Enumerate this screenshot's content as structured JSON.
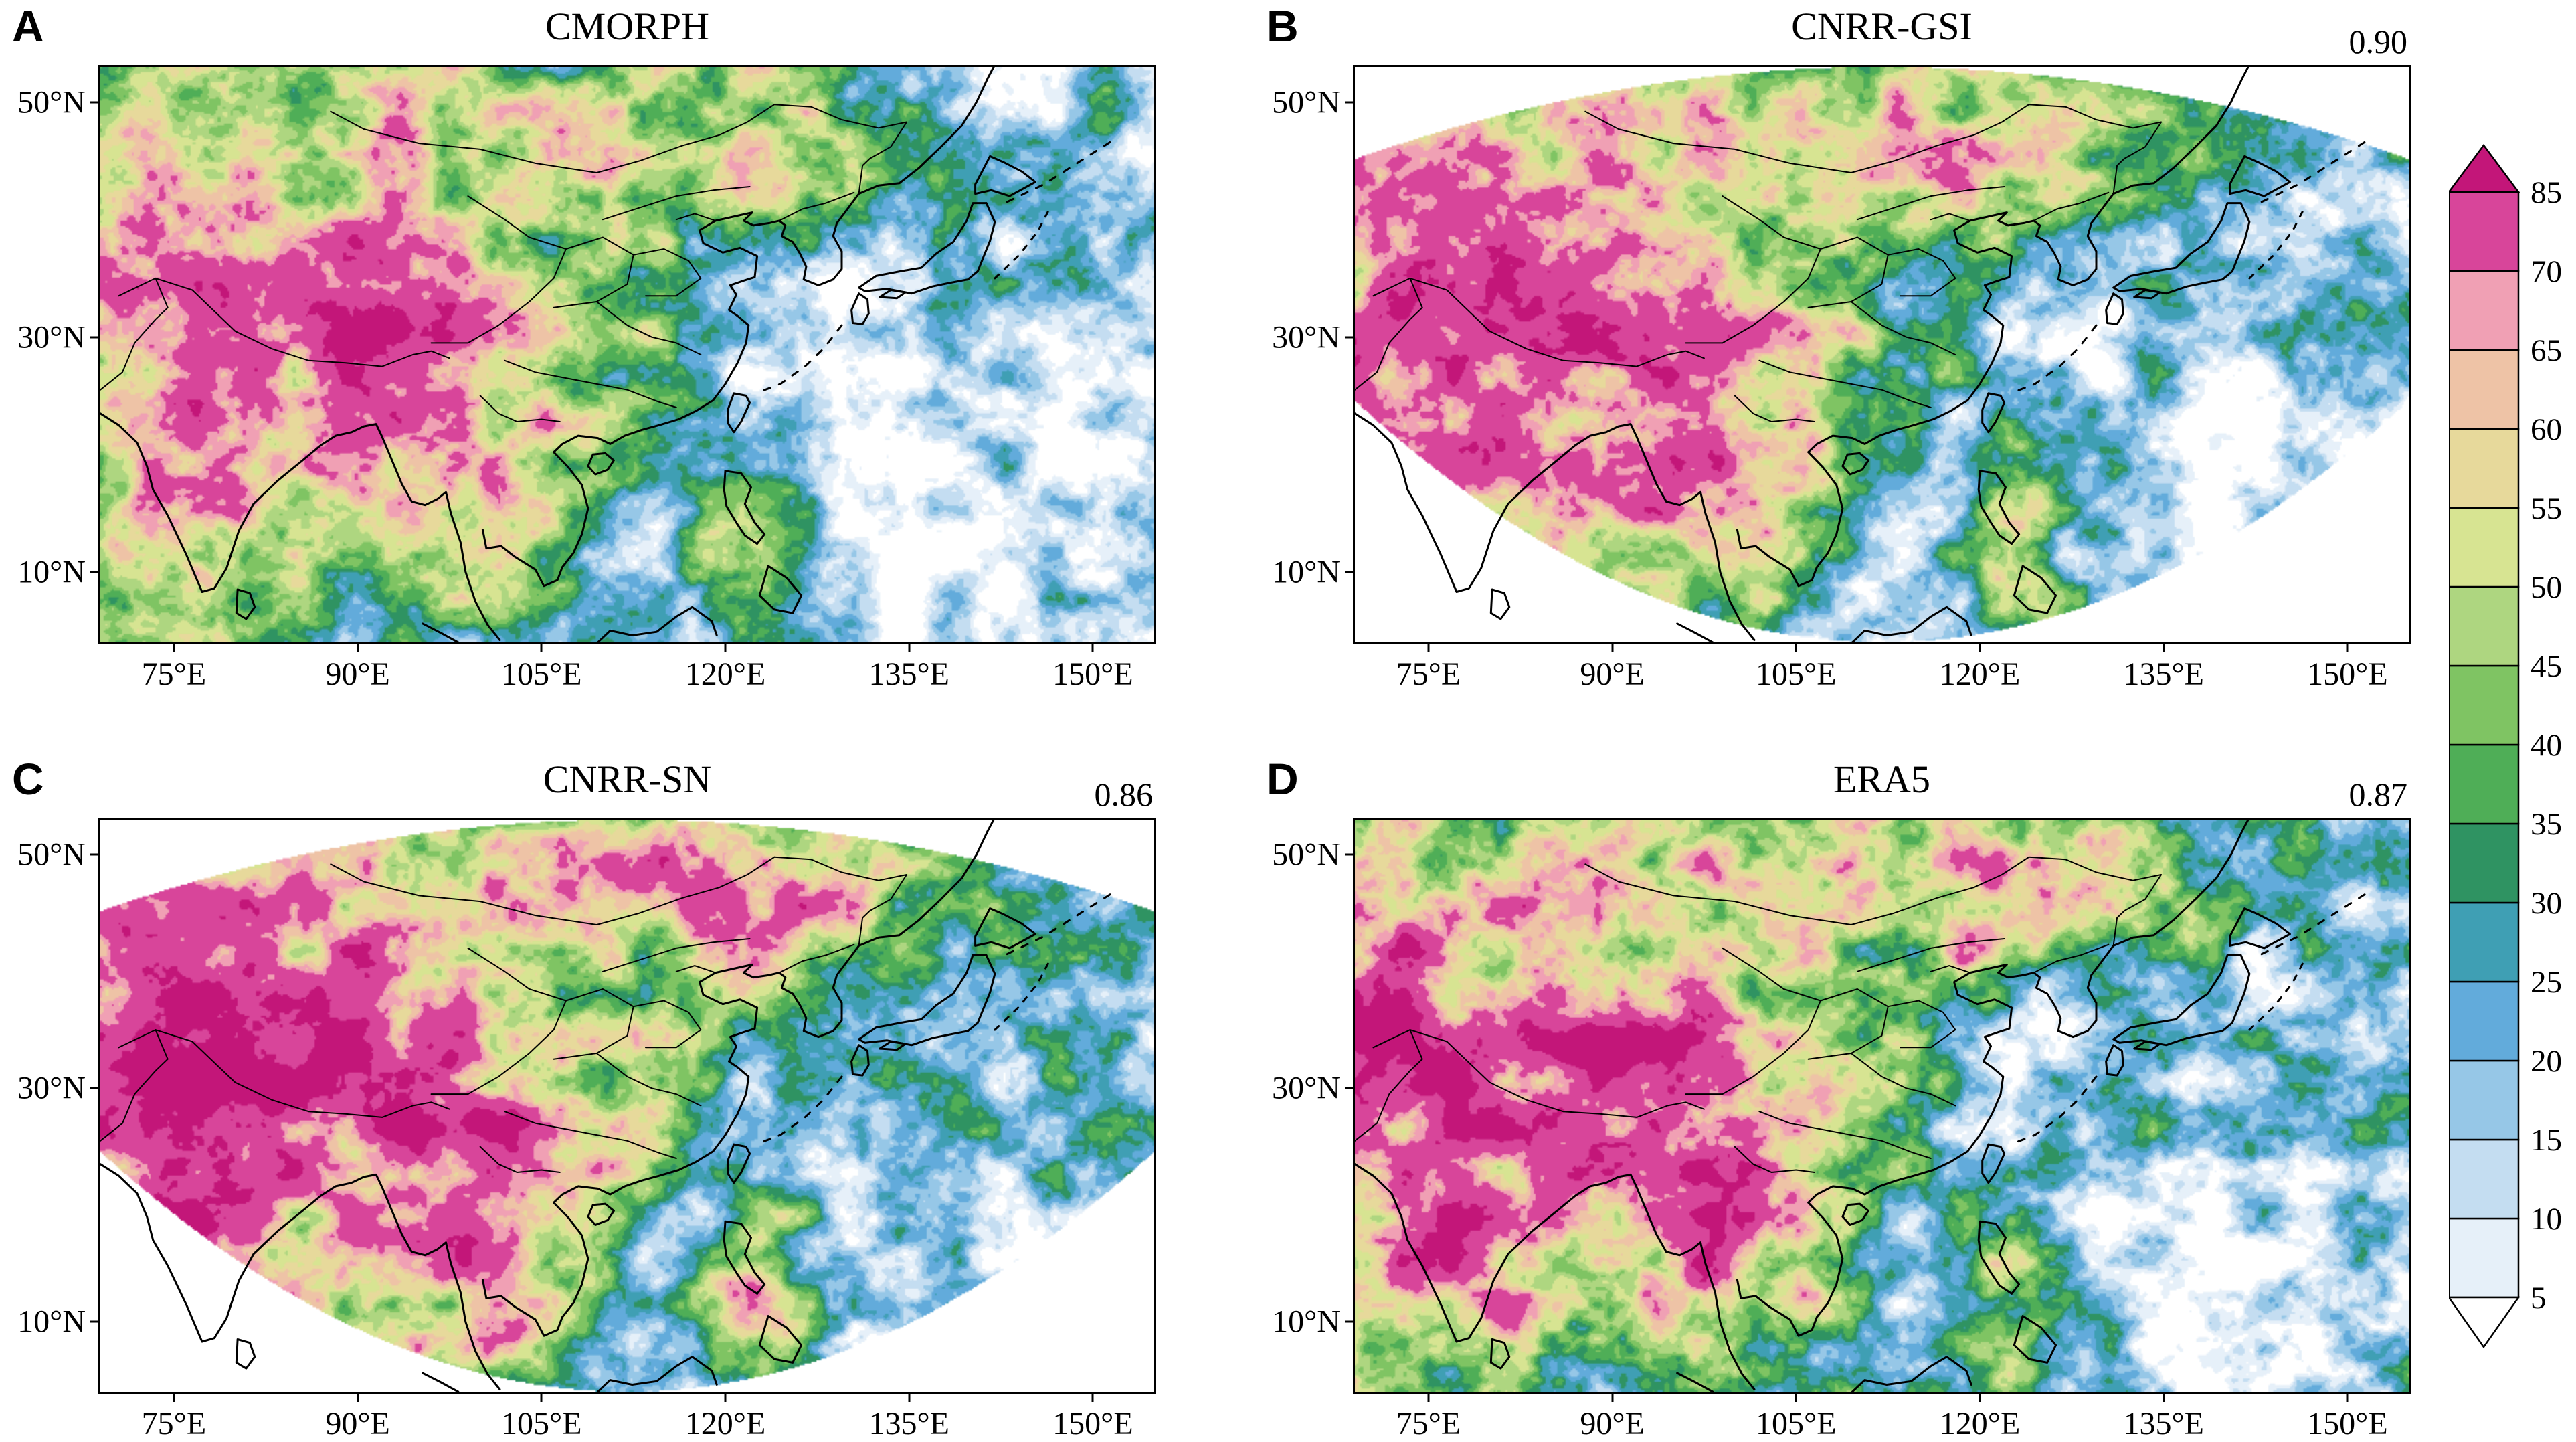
{
  "figure": {
    "unit_label": "%",
    "panels": [
      {
        "label": "A",
        "title": "CMORPH",
        "correlation": null
      },
      {
        "label": "B",
        "title": "CNRR-GSI",
        "correlation": "0.90"
      },
      {
        "label": "C",
        "title": "CNRR-SN",
        "correlation": "0.86"
      },
      {
        "label": "D",
        "title": "ERA5",
        "correlation": "0.87"
      }
    ],
    "x_tick_labels": [
      "75°E",
      "90°E",
      "105°E",
      "120°E",
      "135°E",
      "150°E"
    ],
    "y_tick_labels": [
      "50°N",
      "30°N",
      "10°N"
    ]
  },
  "chart_data": {
    "type": "heatmap",
    "layout": "2x2 geographic map panels sharing one vertical colorbar at right",
    "panels": [
      {
        "id": "A",
        "title": "CMORPH",
        "pattern_correlation": null,
        "domain_mask": "full rectangle"
      },
      {
        "id": "B",
        "title": "CNRR-GSI",
        "pattern_correlation": 0.9,
        "domain_mask": "curved projection fan (white corner wedges)"
      },
      {
        "id": "C",
        "title": "CNRR-SN",
        "pattern_correlation": 0.86,
        "domain_mask": "curved projection fan (white corner wedges)"
      },
      {
        "id": "D",
        "title": "ERA5",
        "pattern_correlation": 0.87,
        "domain_mask": "full rectangle"
      }
    ],
    "x_axis": {
      "tick_values": [
        75,
        90,
        105,
        120,
        135,
        150
      ],
      "tick_labels": [
        "75°E",
        "90°E",
        "105°E",
        "120°E",
        "135°E",
        "150°E"
      ],
      "range_deg_east": [
        69,
        155
      ]
    },
    "y_axis": {
      "tick_values": [
        50,
        30,
        10
      ],
      "tick_labels": [
        "50°N",
        "30°N",
        "10°N"
      ],
      "range_deg_north": [
        4,
        53
      ]
    },
    "colorbar": {
      "unit": "%",
      "orientation": "vertical",
      "levels": [
        5,
        10,
        15,
        20,
        25,
        30,
        35,
        40,
        45,
        50,
        55,
        60,
        65,
        70,
        85
      ],
      "colors": [
        "#ffffff",
        "#e6f0f9",
        "#c4ddf1",
        "#96c7e7",
        "#62abdb",
        "#3f9fb4",
        "#2f9362",
        "#4fae57",
        "#7fc463",
        "#aed680",
        "#d7e492",
        "#e7d99b",
        "#eec3a6",
        "#f0a0b4",
        "#d8459a",
        "#c31679"
      ],
      "arrow_low_color": "#ffffff",
      "arrow_high_color": "#c31679"
    }
  }
}
